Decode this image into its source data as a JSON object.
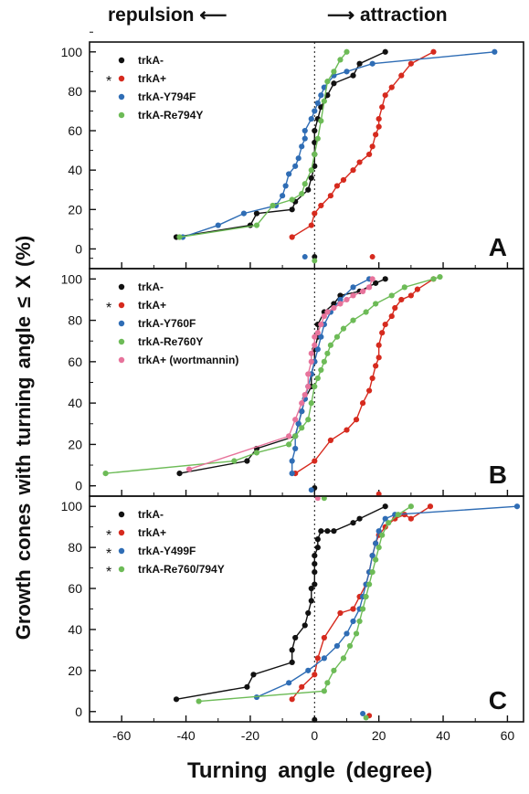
{
  "header": {
    "left": "repulsion",
    "right": "attraction"
  },
  "ylabel": "Growth cones with turning angle ≤ X (%)",
  "xlabel": "Turning angle (degree)",
  "colors": {
    "black": "#111111",
    "red": "#d62a1e",
    "blue": "#2f6db5",
    "green": "#6dbb57",
    "pink": "#e7739b"
  },
  "chart_data": [
    {
      "type": "line",
      "panel": "A",
      "xlim": [
        -70,
        65
      ],
      "ylim": [
        -10,
        105
      ],
      "yticks": [
        0,
        20,
        40,
        60,
        80,
        100
      ],
      "xticks": [
        -60,
        -40,
        -20,
        0,
        20,
        40,
        60
      ],
      "series": [
        {
          "name": "trkA-",
          "marker": "",
          "color": "#111111",
          "x": [
            -43,
            -20,
            -18,
            -7,
            -6,
            -2,
            -1,
            0,
            0,
            0,
            0,
            1,
            2,
            4,
            6,
            12,
            14,
            22
          ],
          "y": [
            6,
            12,
            18,
            20,
            24,
            30,
            36,
            42,
            48,
            54,
            60,
            66,
            72,
            78,
            84,
            88,
            94,
            100
          ],
          "below": -4
        },
        {
          "name": "trkA+",
          "marker": "*",
          "color": "#d62a1e",
          "x": [
            -7,
            -1,
            0,
            2,
            5,
            7,
            9,
            12,
            14,
            17,
            18,
            19,
            20,
            20,
            21,
            22,
            24,
            27,
            30,
            37
          ],
          "y": [
            6,
            12,
            18,
            22,
            27,
            32,
            35,
            40,
            44,
            48,
            52,
            58,
            62,
            66,
            72,
            78,
            82,
            88,
            94,
            100
          ],
          "below": -4
        },
        {
          "name": "trkA-Y794F",
          "marker": "",
          "color": "#2f6db5",
          "x": [
            -41,
            -30,
            -22,
            -12,
            -10,
            -9,
            -8,
            -6,
            -5,
            -4,
            -3,
            -3,
            -1,
            0,
            1,
            2,
            3,
            6,
            10,
            18,
            56
          ],
          "y": [
            6,
            12,
            18,
            22,
            27,
            32,
            38,
            42,
            46,
            52,
            56,
            60,
            66,
            70,
            74,
            78,
            82,
            88,
            90,
            94,
            100
          ],
          "below": -4
        },
        {
          "name": "trkA-Re794Y",
          "marker": "",
          "color": "#6dbb57",
          "x": [
            -42,
            -18,
            -13,
            -7,
            -4,
            -3,
            -1,
            0,
            1,
            2,
            3,
            4,
            6,
            8,
            10
          ],
          "y": [
            6,
            12,
            22,
            25,
            28,
            33,
            40,
            48,
            56,
            65,
            75,
            85,
            90,
            96,
            100
          ],
          "below": -6
        }
      ]
    },
    {
      "type": "line",
      "panel": "B",
      "xlim": [
        -70,
        65
      ],
      "ylim": [
        -5,
        105
      ],
      "yticks": [
        0,
        20,
        40,
        60,
        80,
        100
      ],
      "xticks": [
        -60,
        -40,
        -20,
        0,
        20,
        40,
        60
      ],
      "series": [
        {
          "name": "trkA-",
          "marker": "",
          "color": "#111111",
          "x": [
            -42,
            -21,
            -18,
            -6,
            -5,
            -4,
            -3,
            -1,
            -1,
            0,
            0,
            1,
            1,
            3,
            6,
            8,
            14,
            19,
            22
          ],
          "y": [
            6,
            12,
            18,
            24,
            30,
            36,
            42,
            48,
            54,
            60,
            66,
            72,
            78,
            84,
            88,
            92,
            94,
            98,
            100
          ],
          "below": -1
        },
        {
          "name": "trkA+",
          "marker": "*",
          "color": "#d62a1e",
          "x": [
            -6,
            0,
            5,
            10,
            13,
            15,
            17,
            18,
            19,
            20,
            20,
            21,
            22,
            24,
            25,
            27,
            30,
            32,
            37
          ],
          "y": [
            6,
            12,
            22,
            27,
            32,
            40,
            46,
            52,
            58,
            62,
            68,
            74,
            78,
            82,
            86,
            90,
            92,
            95,
            100
          ],
          "below": -4
        },
        {
          "name": "trkA-Y760F",
          "marker": "",
          "color": "#2f6db5",
          "x": [
            -7,
            -7,
            -6,
            -6,
            -5,
            -4,
            -3,
            -2,
            -1,
            0,
            1,
            2,
            3,
            5,
            8,
            12,
            17
          ],
          "y": [
            6,
            12,
            18,
            24,
            30,
            36,
            42,
            48,
            54,
            60,
            66,
            72,
            78,
            84,
            90,
            96,
            100
          ],
          "below": -2
        },
        {
          "name": "trkA-Re760Y",
          "marker": "",
          "color": "#6dbb57",
          "x": [
            -65,
            -25,
            -18,
            -8,
            -6,
            -4,
            -2,
            -1,
            0,
            1,
            2,
            3,
            4,
            5,
            7,
            9,
            12,
            16,
            19,
            24,
            28,
            37,
            39
          ],
          "y": [
            6,
            12,
            16,
            20,
            24,
            28,
            32,
            40,
            48,
            52,
            56,
            60,
            64,
            68,
            72,
            76,
            80,
            84,
            88,
            92,
            96,
            100,
            101
          ],
          "below": -6
        },
        {
          "name": "trkA+ (wortmannin)",
          "marker": "",
          "color": "#e7739b",
          "x": [
            -39,
            -8,
            -6,
            -4,
            -3,
            -2,
            -2,
            -1,
            -1,
            0,
            0,
            1,
            2,
            3,
            4,
            6,
            8,
            10,
            12,
            15,
            17,
            18
          ],
          "y": [
            8,
            24,
            32,
            40,
            44,
            48,
            54,
            60,
            64,
            68,
            72,
            74,
            78,
            82,
            84,
            86,
            88,
            90,
            92,
            94,
            96,
            100
          ],
          "below": -6
        }
      ]
    },
    {
      "type": "line",
      "panel": "C",
      "xlim": [
        -70,
        65
      ],
      "ylim": [
        -5,
        105
      ],
      "yticks": [
        0,
        20,
        40,
        60,
        80,
        100
      ],
      "xticks": [
        -60,
        -40,
        -20,
        0,
        20,
        40,
        60
      ],
      "series": [
        {
          "name": "trkA-",
          "marker": "",
          "color": "#111111",
          "x": [
            -43,
            -21,
            -19,
            -7,
            -7,
            -6,
            -3,
            -2,
            -1,
            -1,
            0,
            0,
            0,
            0,
            1,
            1,
            2,
            4,
            6,
            12,
            14,
            22
          ],
          "y": [
            6,
            12,
            18,
            24,
            30,
            36,
            42,
            48,
            54,
            60,
            62,
            68,
            72,
            76,
            80,
            84,
            88,
            88,
            88,
            92,
            94,
            100
          ],
          "below": -4
        },
        {
          "name": "trkA+",
          "marker": "*",
          "color": "#d62a1e",
          "x": [
            -7,
            -4,
            0,
            1,
            3,
            8,
            12,
            14,
            16,
            17,
            18,
            19,
            20,
            22,
            25,
            28,
            30,
            36
          ],
          "y": [
            6,
            12,
            18,
            26,
            36,
            48,
            50,
            56,
            62,
            68,
            76,
            82,
            86,
            90,
            94,
            96,
            94,
            100
          ],
          "below": -2
        },
        {
          "name": "trkA-Y499F",
          "marker": "*",
          "color": "#2f6db5",
          "x": [
            -18,
            -8,
            -2,
            3,
            7,
            10,
            12,
            14,
            15,
            16,
            17,
            18,
            19,
            20,
            22,
            25,
            63
          ],
          "y": [
            7,
            14,
            20,
            26,
            32,
            38,
            44,
            50,
            56,
            62,
            68,
            76,
            82,
            88,
            94,
            96,
            100
          ],
          "below": -1
        },
        {
          "name": "trkA-Re760/794Y",
          "marker": "*",
          "color": "#6dbb57",
          "x": [
            -36,
            3,
            4,
            6,
            9,
            11,
            13,
            14,
            15,
            16,
            17,
            18,
            19,
            20,
            21,
            23,
            26,
            30
          ],
          "y": [
            5,
            10,
            14,
            20,
            26,
            32,
            38,
            44,
            50,
            56,
            62,
            68,
            74,
            80,
            86,
            92,
            96,
            100
          ],
          "below": -3
        }
      ]
    }
  ]
}
